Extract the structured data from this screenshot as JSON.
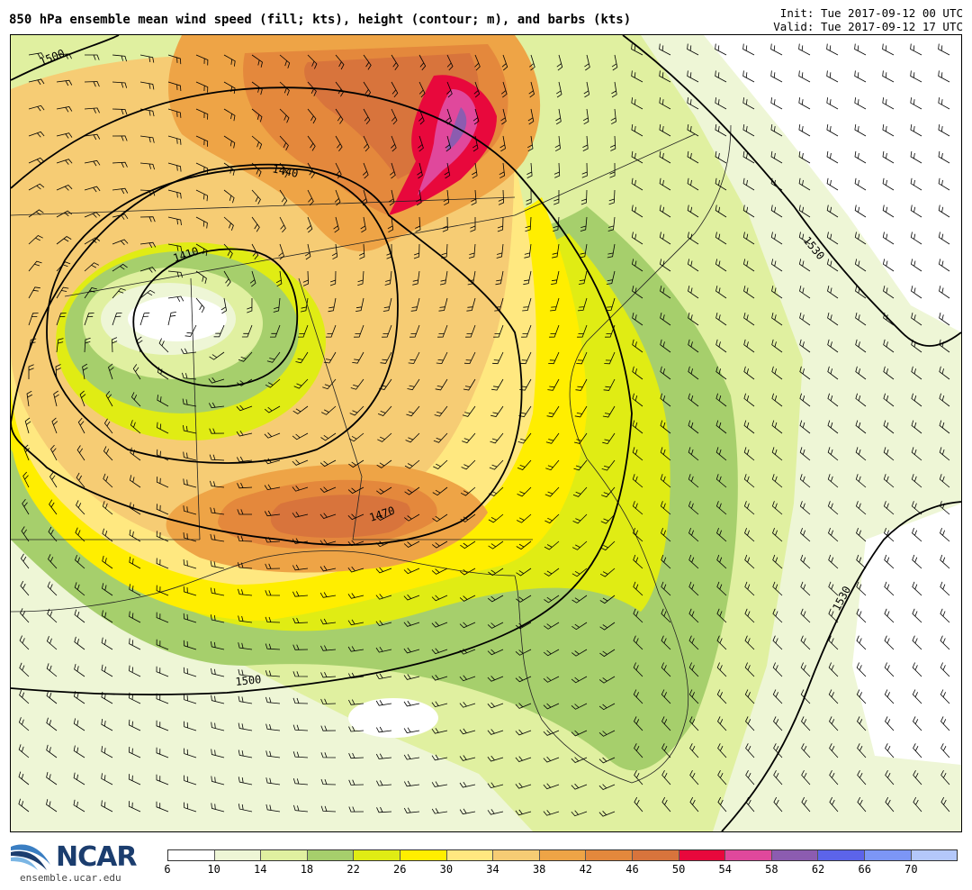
{
  "header": {
    "title": "850 hPa ensemble mean wind speed (fill; kts), height (contour; m), and barbs (kts)",
    "init": "Init: Tue 2017-09-12 00 UTC",
    "valid": "Valid: Tue 2017-09-12 17 UTC"
  },
  "map": {
    "contour_labels": [
      "1500",
      "1440",
      "1410",
      "1470",
      "1530",
      "1500",
      "1530"
    ],
    "colors": {
      "c6": "#ffffff",
      "c10": "#eef6d6",
      "c14": "#e0f0a0",
      "c18": "#a6cf6c",
      "c22": "#e0ec14",
      "c26": "#ffee00",
      "c30": "#ffe880",
      "c34": "#f6cc74",
      "c38": "#eea446",
      "c42": "#e4883c",
      "c46": "#d8743c",
      "c50": "#e8083c",
      "c54": "#e0489c",
      "c58": "#8c5cb0"
    }
  },
  "colorbar": {
    "labels": [
      "6",
      "10",
      "14",
      "18",
      "22",
      "26",
      "30",
      "34",
      "38",
      "42",
      "46",
      "50",
      "54",
      "58",
      "62",
      "66",
      "70"
    ],
    "colors": [
      "#ffffff",
      "#eef6d6",
      "#e0f0a0",
      "#a6cf6c",
      "#e0ec14",
      "#ffee00",
      "#ffe880",
      "#f6cc74",
      "#eea446",
      "#e4883c",
      "#d8743c",
      "#e8083c",
      "#e0489c",
      "#8c5cb0",
      "#5c64ea",
      "#7c96f6",
      "#b4c8fa"
    ]
  },
  "logo": {
    "name": "NCAR",
    "url": "ensemble.ucar.edu"
  }
}
